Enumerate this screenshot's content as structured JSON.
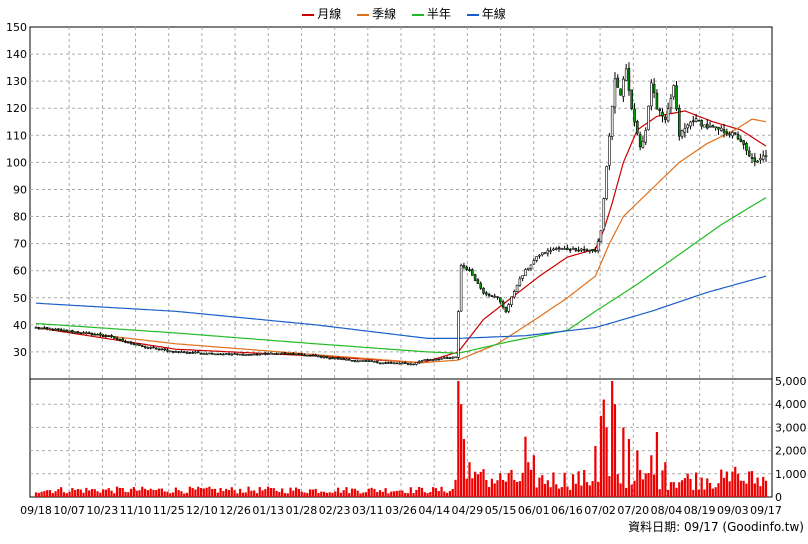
{
  "legend": {
    "items": [
      {
        "label": "月線",
        "color": "#cc0000"
      },
      {
        "label": "季線",
        "color": "#e0701a"
      },
      {
        "label": "半年",
        "color": "#22bb22"
      },
      {
        "label": "年線",
        "color": "#1a5fc8"
      }
    ]
  },
  "source_text": "資料日期: 09/17  (Goodinfo.tw)",
  "chart_data": {
    "type": "candlestick",
    "price_axis": {
      "min": 20,
      "max": 150,
      "ticks": [
        30,
        40,
        50,
        60,
        70,
        80,
        90,
        100,
        110,
        120,
        130,
        140,
        150
      ]
    },
    "volume_axis": {
      "min": 0,
      "max": 5000,
      "ticks": [
        0,
        1000,
        2000,
        3000,
        4000,
        5000
      ],
      "tick_labels": [
        "0",
        "1,000",
        "2,000",
        "3,000",
        "4,000",
        "5,000"
      ]
    },
    "date_labels": [
      "09/18",
      "10/07",
      "10/23",
      "11/10",
      "11/25",
      "12/10",
      "12/26",
      "01/13",
      "01/28",
      "02/23",
      "03/11",
      "03/26",
      "04/14",
      "04/29",
      "05/15",
      "06/01",
      "06/16",
      "07/02",
      "07/20",
      "08/04",
      "08/19",
      "09/03",
      "09/17"
    ],
    "grid": true,
    "legend_position": "top-center",
    "close_anchors": [
      [
        0,
        39
      ],
      [
        13,
        37.5
      ],
      [
        25,
        36
      ],
      [
        38,
        32
      ],
      [
        50,
        30
      ],
      [
        62,
        29.5
      ],
      [
        75,
        29
      ],
      [
        88,
        29.5
      ],
      [
        100,
        28.5
      ],
      [
        112,
        27
      ],
      [
        125,
        26
      ],
      [
        135,
        25.5
      ],
      [
        138,
        27
      ],
      [
        150,
        28
      ],
      [
        151,
        45
      ],
      [
        152,
        62
      ],
      [
        155,
        60
      ],
      [
        160,
        52
      ],
      [
        165,
        50
      ],
      [
        168,
        45
      ],
      [
        172,
        55
      ],
      [
        175,
        60
      ],
      [
        180,
        66
      ],
      [
        185,
        68
      ],
      [
        190,
        68
      ],
      [
        195,
        68
      ],
      [
        200,
        67
      ],
      [
        202,
        75
      ],
      [
        205,
        110
      ],
      [
        207,
        130
      ],
      [
        209,
        125
      ],
      [
        211,
        135
      ],
      [
        213,
        120
      ],
      [
        216,
        105
      ],
      [
        218,
        112
      ],
      [
        220,
        130
      ],
      [
        222,
        120
      ],
      [
        225,
        115
      ],
      [
        228,
        128
      ],
      [
        230,
        110
      ],
      [
        235,
        116
      ],
      [
        240,
        113
      ],
      [
        245,
        112
      ],
      [
        250,
        110
      ],
      [
        252,
        108
      ],
      [
        255,
        102
      ],
      [
        258,
        100
      ],
      [
        261,
        103
      ]
    ],
    "moving_average_anchors": {
      "month": [
        [
          0,
          39
        ],
        [
          50,
          31
        ],
        [
          100,
          28.5
        ],
        [
          138,
          26
        ],
        [
          151,
          30
        ],
        [
          160,
          42
        ],
        [
          170,
          50
        ],
        [
          180,
          58
        ],
        [
          190,
          65
        ],
        [
          200,
          68
        ],
        [
          203,
          75
        ],
        [
          206,
          85
        ],
        [
          210,
          100
        ],
        [
          215,
          112
        ],
        [
          222,
          117
        ],
        [
          232,
          119
        ],
        [
          242,
          115
        ],
        [
          252,
          112
        ],
        [
          261,
          106
        ]
      ],
      "quarter": [
        [
          0,
          39
        ],
        [
          50,
          33
        ],
        [
          100,
          29
        ],
        [
          138,
          26
        ],
        [
          151,
          27
        ],
        [
          165,
          33
        ],
        [
          180,
          43
        ],
        [
          190,
          50
        ],
        [
          200,
          58
        ],
        [
          205,
          70
        ],
        [
          210,
          80
        ],
        [
          220,
          90
        ],
        [
          230,
          100
        ],
        [
          240,
          107
        ],
        [
          250,
          112
        ],
        [
          256,
          116
        ],
        [
          261,
          115
        ]
      ],
      "half": [
        [
          0,
          40.5
        ],
        [
          50,
          37
        ],
        [
          100,
          33
        ],
        [
          140,
          30
        ],
        [
          151,
          29.5
        ],
        [
          170,
          34
        ],
        [
          190,
          38
        ],
        [
          200,
          45
        ],
        [
          215,
          55
        ],
        [
          230,
          66
        ],
        [
          245,
          77
        ],
        [
          261,
          87
        ]
      ],
      "year": [
        [
          0,
          48
        ],
        [
          50,
          45
        ],
        [
          100,
          40
        ],
        [
          140,
          35
        ],
        [
          151,
          35
        ],
        [
          175,
          36
        ],
        [
          200,
          39
        ],
        [
          220,
          45
        ],
        [
          240,
          52
        ],
        [
          261,
          58
        ]
      ]
    },
    "volume_spikes": [
      [
        151,
        5000
      ],
      [
        152,
        4000
      ],
      [
        153,
        2500
      ],
      [
        155,
        1500
      ],
      [
        160,
        1200
      ],
      [
        175,
        2600
      ],
      [
        176,
        1500
      ],
      [
        178,
        1800
      ],
      [
        200,
        2200
      ],
      [
        202,
        3500
      ],
      [
        203,
        4200
      ],
      [
        204,
        3000
      ],
      [
        206,
        5000
      ],
      [
        207,
        4000
      ],
      [
        210,
        3000
      ],
      [
        212,
        2500
      ],
      [
        215,
        2000
      ],
      [
        220,
        1800
      ],
      [
        222,
        2800
      ],
      [
        225,
        1500
      ],
      [
        240,
        800
      ],
      [
        250,
        1300
      ],
      [
        255,
        1100
      ],
      [
        261,
        700
      ]
    ]
  }
}
